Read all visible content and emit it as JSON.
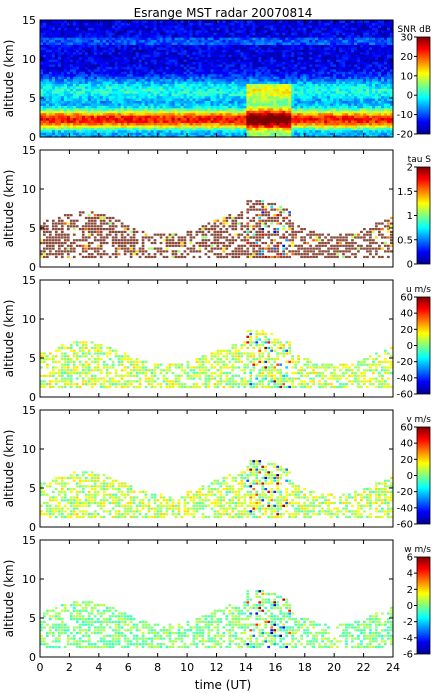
{
  "title": "Esrange MST radar 20070814",
  "chart_data": [
    {
      "type": "heatmap",
      "quantity": "SNR",
      "ylabel": "altitude (km)",
      "xlim": [
        0,
        24
      ],
      "ylim": [
        0,
        15
      ],
      "yticks": [
        0,
        5,
        10,
        15
      ],
      "colorbar": {
        "label": "SNR dB",
        "range": [
          -20,
          30
        ],
        "ticks": [
          30,
          20,
          10,
          0,
          -10,
          -20
        ],
        "tick_labels": [
          "30",
          "20",
          "10",
          "0",
          "-10",
          "-20"
        ]
      }
    },
    {
      "type": "heatmap",
      "quantity": "tau",
      "ylabel": "altitude (km)",
      "xlim": [
        0,
        24
      ],
      "ylim": [
        0,
        15
      ],
      "yticks": [
        0,
        5,
        10,
        15
      ],
      "colorbar": {
        "label": "tau S",
        "range": [
          0,
          2
        ],
        "ticks": [
          2,
          1.5,
          1,
          0.5,
          0
        ],
        "tick_labels": [
          "2",
          "1.5",
          "1",
          "0.5",
          "0"
        ]
      }
    },
    {
      "type": "heatmap",
      "quantity": "u",
      "ylabel": "altitude (km)",
      "xlim": [
        0,
        24
      ],
      "ylim": [
        0,
        15
      ],
      "yticks": [
        0,
        5,
        10,
        15
      ],
      "colorbar": {
        "label": "u m/s",
        "range": [
          -60,
          60
        ],
        "ticks": [
          60,
          40,
          20,
          0,
          -20,
          -40,
          -60
        ],
        "tick_labels": [
          "60",
          "40",
          "20",
          "0",
          "-20",
          "-40",
          "-60"
        ]
      }
    },
    {
      "type": "heatmap",
      "quantity": "v",
      "ylabel": "altitude (km)",
      "xlim": [
        0,
        24
      ],
      "ylim": [
        0,
        15
      ],
      "yticks": [
        0,
        5,
        10,
        15
      ],
      "colorbar": {
        "label": "v m/s",
        "range": [
          -60,
          60
        ],
        "ticks": [
          60,
          40,
          20,
          0,
          -20,
          -40,
          -60
        ],
        "tick_labels": [
          "60",
          "40",
          "20",
          "0",
          "-20",
          "-40",
          "-60"
        ]
      }
    },
    {
      "type": "heatmap",
      "quantity": "w",
      "ylabel": "altitude (km)",
      "xlabel": "time (UT)",
      "xlim": [
        0,
        24
      ],
      "ylim": [
        0,
        15
      ],
      "yticks": [
        0,
        5,
        10,
        15
      ],
      "xticks": [
        0,
        2,
        4,
        6,
        8,
        10,
        12,
        14,
        16,
        18,
        20,
        22,
        24
      ],
      "colorbar": {
        "label": "w m/s",
        "range": [
          -6,
          6
        ],
        "ticks": [
          6,
          4,
          2,
          0,
          -2,
          -4,
          -6
        ],
        "tick_labels": [
          "6",
          "4",
          "2",
          "0",
          "-2",
          "-4",
          "-6"
        ]
      }
    }
  ]
}
